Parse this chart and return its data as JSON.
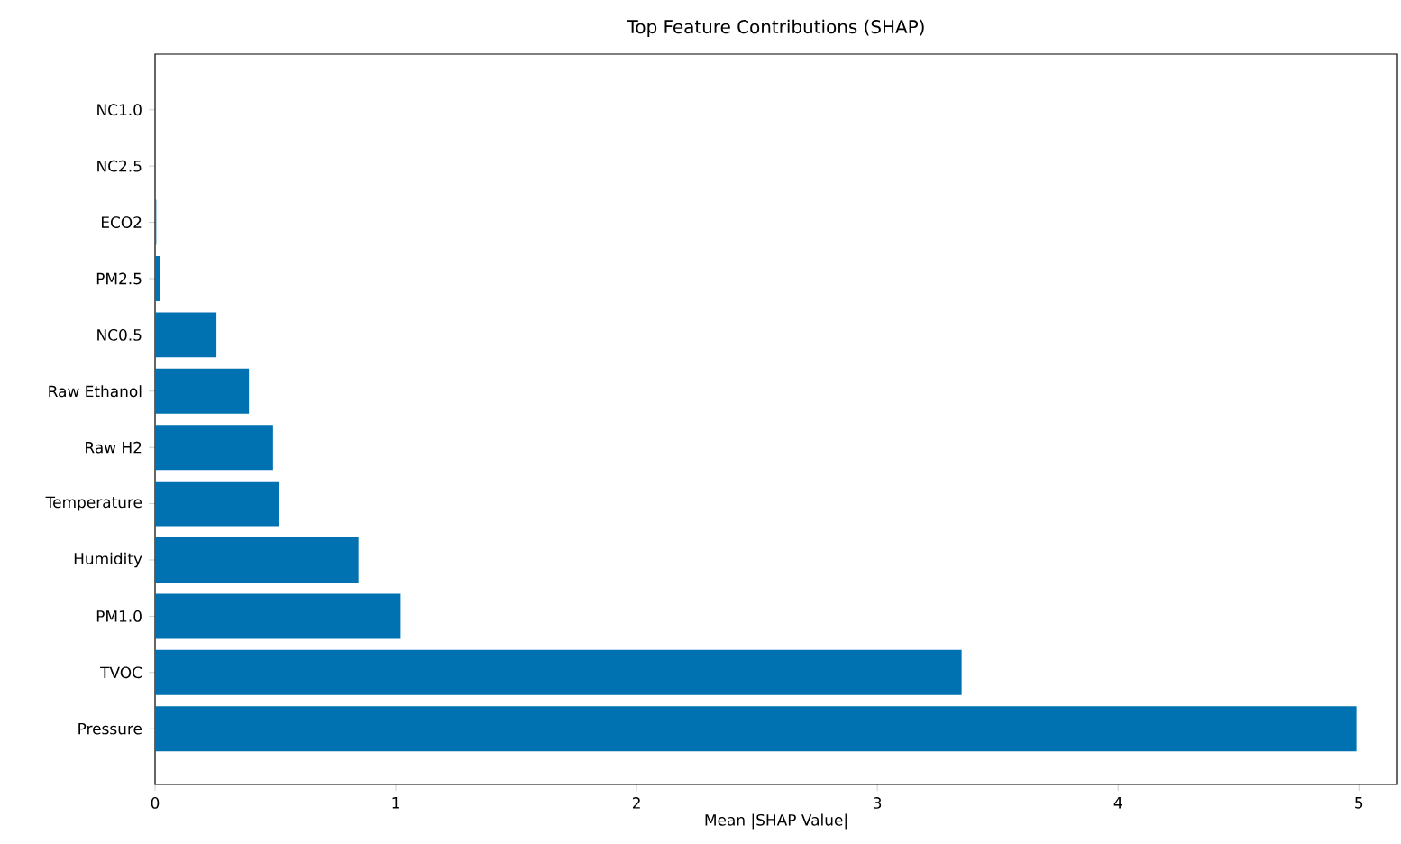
{
  "chart_data": {
    "type": "bar",
    "orientation": "horizontal",
    "title": "Top Feature Contributions (SHAP)",
    "xlabel": "Mean |SHAP Value|",
    "categories": [
      "NC1.0",
      "NC2.5",
      "ECO2",
      "PM2.5",
      "NC0.5",
      "Raw Ethanol",
      "Raw H2",
      "Temperature",
      "Humidity",
      "PM1.0",
      "TVOC",
      "Pressure"
    ],
    "values": [
      0,
      0,
      0.005,
      0.02,
      0.255,
      0.39,
      0.49,
      0.515,
      0.845,
      1.02,
      3.35,
      4.99
    ],
    "color": "#0072b2",
    "xlim": [
      0,
      5.16
    ],
    "xticks": [
      0,
      1,
      2,
      3,
      4,
      5
    ]
  }
}
